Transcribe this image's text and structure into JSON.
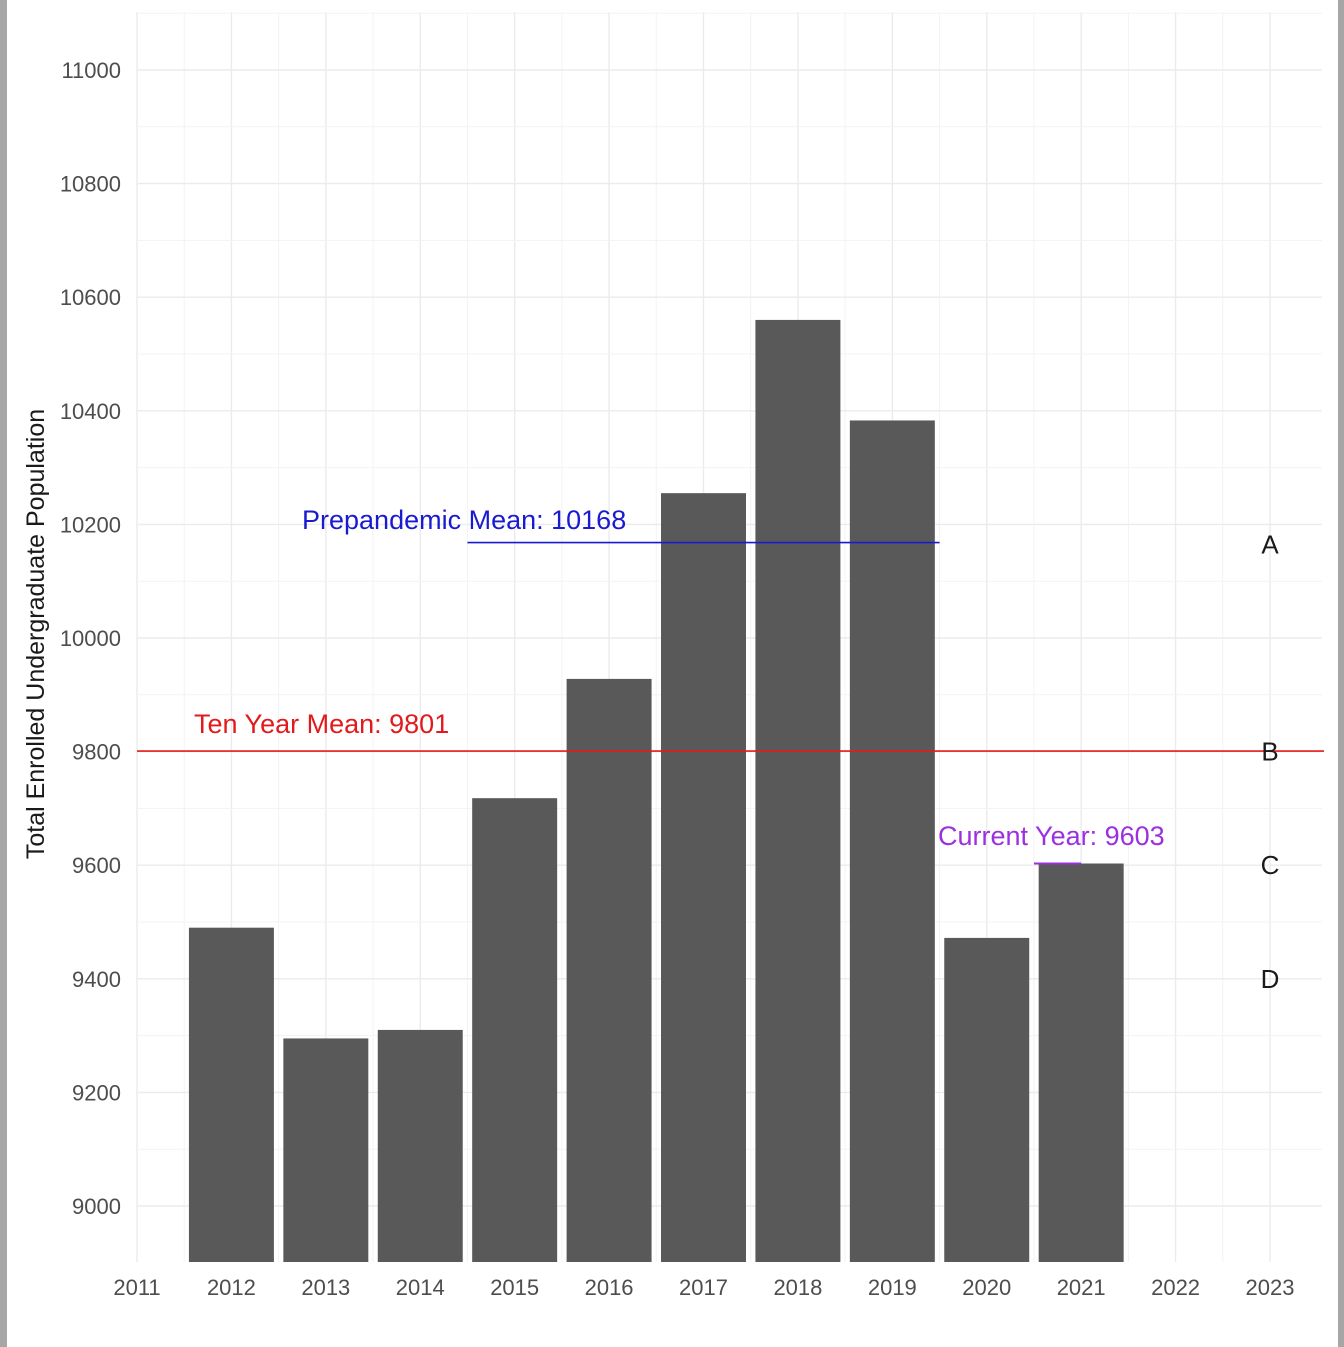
{
  "chart_data": {
    "type": "bar",
    "categories": [
      "2012",
      "2013",
      "2014",
      "2015",
      "2016",
      "2017",
      "2018",
      "2019",
      "2020",
      "2021"
    ],
    "values": [
      9490,
      9295,
      9310,
      9718,
      9928,
      10255,
      10560,
      10383,
      9472,
      9603
    ],
    "ylabel": "Total Enrolled Undergraduate Population",
    "xlabel": "",
    "title": "",
    "ylim": [
      8900,
      11100
    ],
    "xlim": [
      2011,
      2023
    ],
    "x_ticks": [
      "2011",
      "2012",
      "2013",
      "2014",
      "2015",
      "2016",
      "2017",
      "2018",
      "2019",
      "2020",
      "2021",
      "2022",
      "2023"
    ],
    "y_ticks": [
      "9000",
      "9200",
      "9400",
      "9600",
      "9800",
      "10000",
      "10200",
      "10400",
      "10600",
      "10800",
      "11000"
    ],
    "bar_color": "#595959",
    "grid": true,
    "reference_lines": [
      {
        "label": "Ten Year Mean: 9801",
        "value": 9801,
        "x_start": 2011,
        "x_end": 2023,
        "color": "#e31a1c"
      },
      {
        "label": "Prepandemic Mean: 10168",
        "value": 10168,
        "x_start": 2014.5,
        "x_end": 2019.5,
        "color": "#1a1ad1"
      },
      {
        "label": "Current Year: 9603",
        "value": 9603,
        "x_start": 2020.5,
        "x_end": 2021.0,
        "color": "#9b30e0"
      }
    ],
    "letter_markers": [
      {
        "label": "A",
        "value": 10165
      },
      {
        "label": "B",
        "value": 9800
      },
      {
        "label": "C",
        "value": 9600
      },
      {
        "label": "D",
        "value": 9400
      }
    ]
  }
}
